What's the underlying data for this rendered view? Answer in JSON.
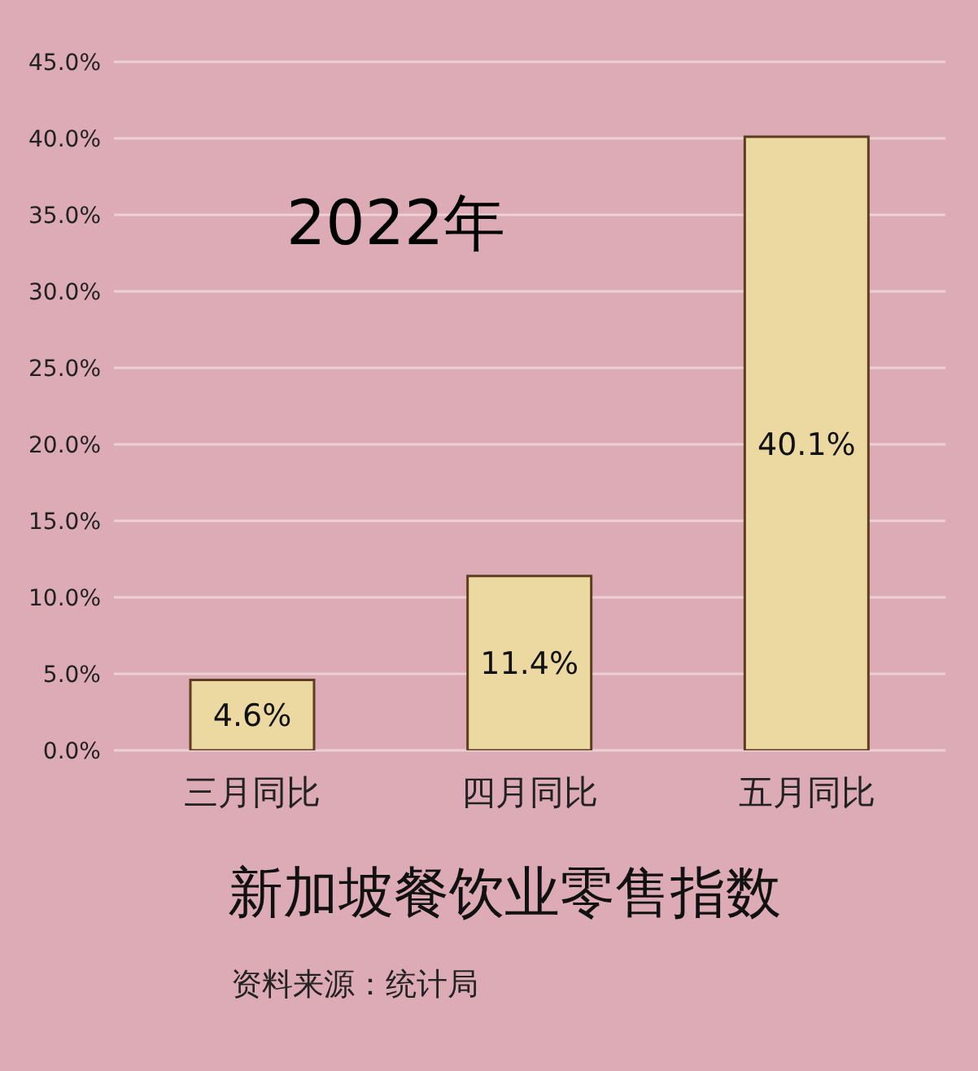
{
  "chart_data": {
    "type": "bar",
    "title": "新加坡餐饮业零售指数",
    "subtitle": "2022年",
    "categories": [
      "三月同比",
      "四月同比",
      "五月同比"
    ],
    "values": [
      4.6,
      11.4,
      40.1
    ],
    "value_labels": [
      "4.6%",
      "11.4%",
      "40.1%"
    ],
    "color": "#ecd9a1",
    "ylim": [
      0,
      45
    ],
    "yticks": [
      {
        "value": 0,
        "label": "0.0%"
      },
      {
        "value": 5,
        "label": "5.0%"
      },
      {
        "value": 10,
        "label": "10.0%"
      },
      {
        "value": 15,
        "label": "15.0%"
      },
      {
        "value": 20,
        "label": "20.0%"
      },
      {
        "value": 25,
        "label": "25.0%"
      },
      {
        "value": 30,
        "label": "30.0%"
      },
      {
        "value": 35,
        "label": "35.0%"
      },
      {
        "value": 40,
        "label": "40.0%"
      },
      {
        "value": 45,
        "label": "45.0%"
      }
    ],
    "grid": "y",
    "annotations": [
      "资料来源：统计局"
    ]
  }
}
